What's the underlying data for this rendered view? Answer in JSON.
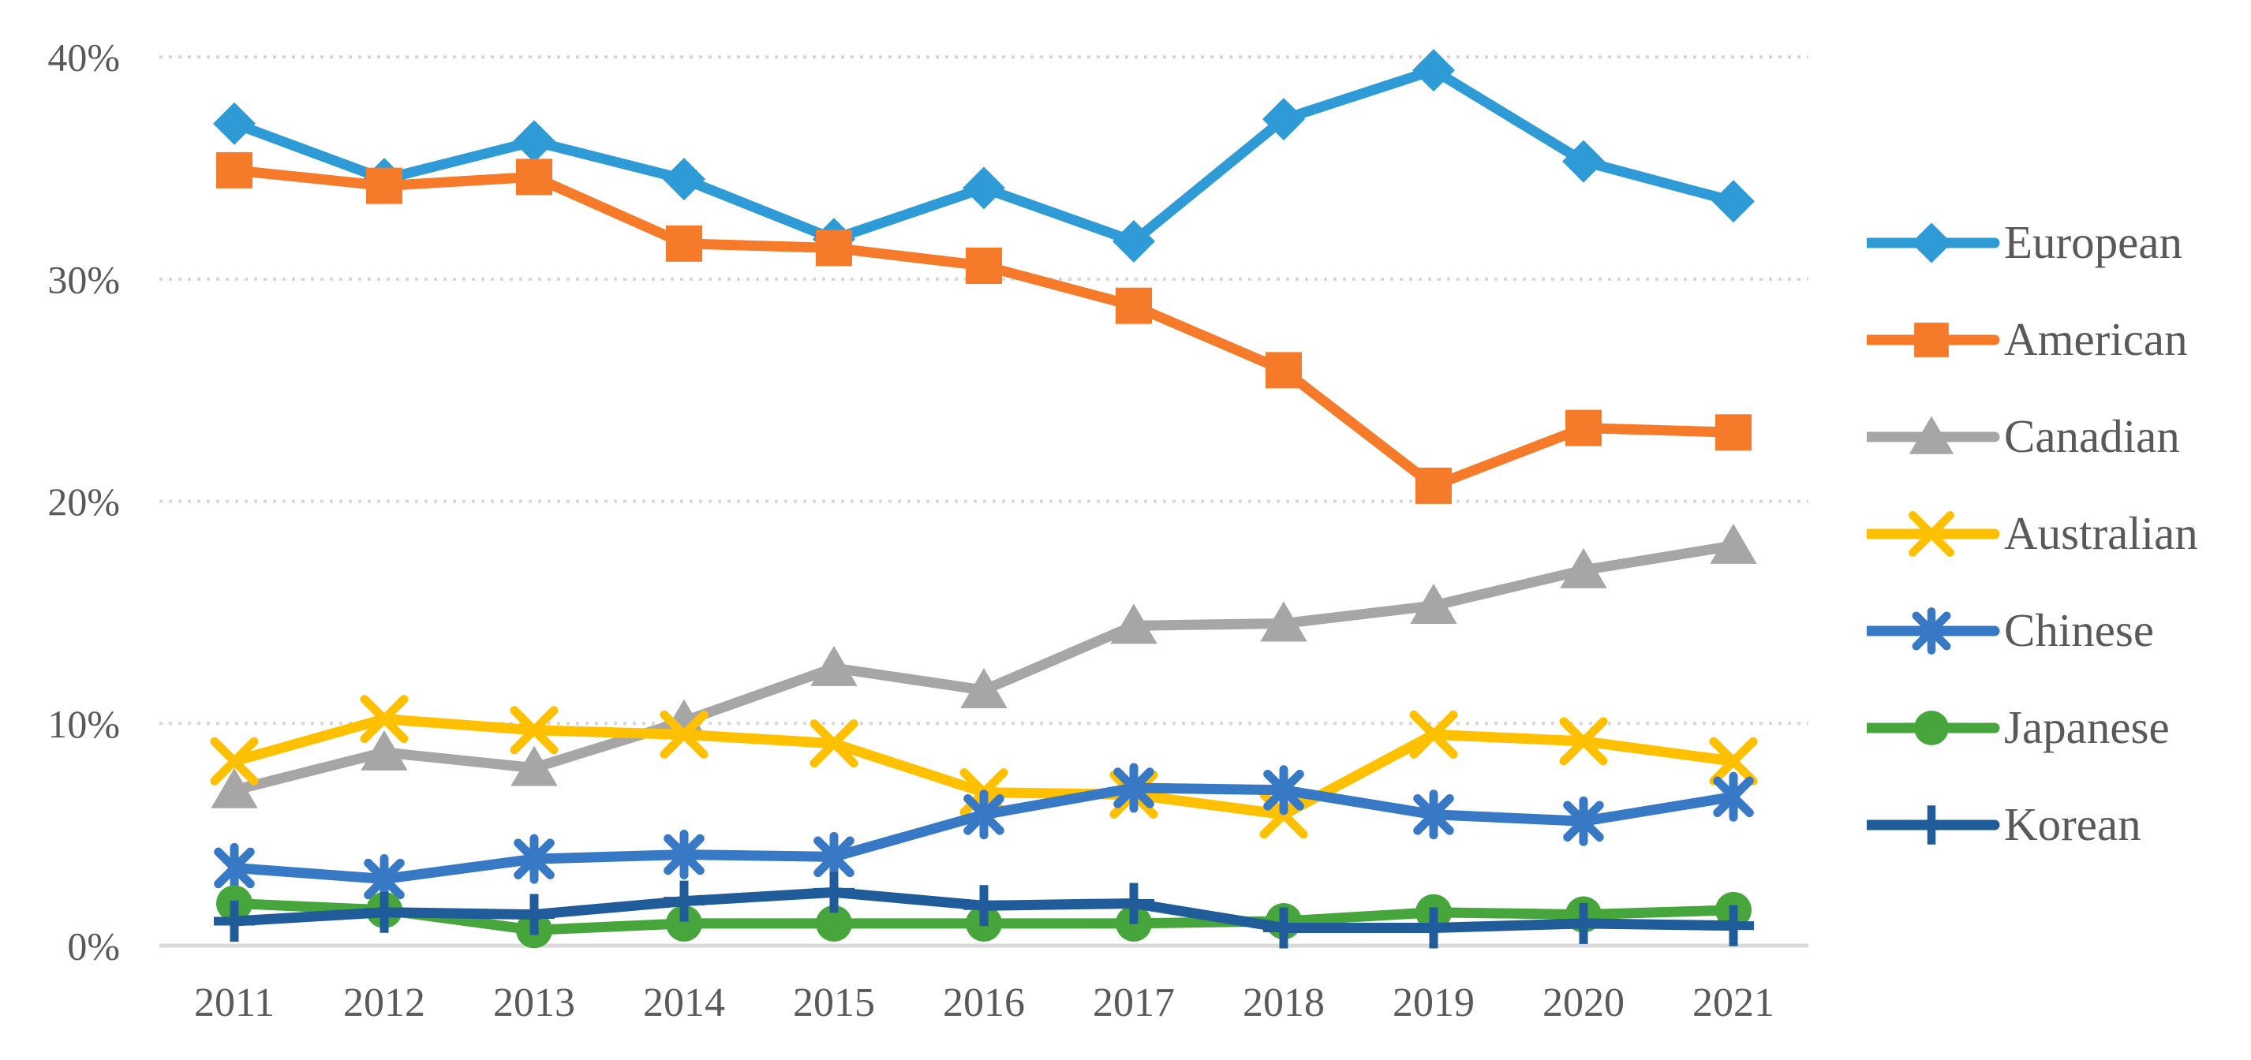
{
  "chart_data": {
    "type": "line",
    "title": "",
    "categories": [
      "2011",
      "2012",
      "2013",
      "2014",
      "2015",
      "2016",
      "2017",
      "2018",
      "2019",
      "2020",
      "2021"
    ],
    "xlabel": "",
    "ylabel": "",
    "ylim": [
      0,
      41.5
    ],
    "grid": "horizontal-dotted",
    "legend_position": "right",
    "background_color": "#FFFFFF",
    "text_color": "#595959",
    "gridline_color": "#D6D6D6",
    "axis_line_color": "#D9D9D9",
    "y_axis": {
      "tick_values": [
        0,
        10,
        20,
        30,
        40
      ],
      "tick_labels": [
        "0%",
        "10%",
        "20%",
        "30%",
        "40%"
      ]
    },
    "series": [
      {
        "name": "European",
        "color": "#2E9BD6",
        "marker": "diamond",
        "values": [
          37.0,
          34.5,
          36.2,
          34.5,
          31.8,
          34.1,
          31.7,
          37.2,
          39.4,
          35.3,
          33.5
        ]
      },
      {
        "name": "American",
        "color": "#F57B2A",
        "marker": "square",
        "values": [
          34.9,
          34.2,
          34.6,
          31.6,
          31.4,
          30.6,
          28.8,
          25.9,
          20.7,
          23.3,
          23.1
        ]
      },
      {
        "name": "Canadian",
        "color": "#A6A6A6",
        "marker": "triangle",
        "values": [
          7.0,
          8.7,
          8.0,
          10.1,
          12.5,
          11.5,
          14.4,
          14.5,
          15.3,
          16.9,
          18.0
        ]
      },
      {
        "name": "Australian",
        "color": "#FFC000",
        "marker": "x",
        "values": [
          8.3,
          10.2,
          9.7,
          9.5,
          9.1,
          6.9,
          6.8,
          5.9,
          9.5,
          9.2,
          8.3
        ]
      },
      {
        "name": "Chinese",
        "color": "#3779C5",
        "marker": "asterisk",
        "values": [
          3.5,
          3.0,
          3.9,
          4.1,
          4.0,
          5.9,
          7.1,
          7.0,
          5.9,
          5.6,
          6.7
        ]
      },
      {
        "name": "Japanese",
        "color": "#47A63B",
        "marker": "circle",
        "values": [
          1.9,
          1.6,
          0.7,
          1.0,
          1.0,
          1.0,
          1.0,
          1.1,
          1.5,
          1.4,
          1.6
        ]
      },
      {
        "name": "Korean",
        "color": "#1F5C99",
        "marker": "plus",
        "values": [
          1.1,
          1.5,
          1.4,
          2.0,
          2.4,
          1.8,
          1.9,
          0.8,
          0.8,
          1.0,
          0.9
        ]
      }
    ]
  }
}
